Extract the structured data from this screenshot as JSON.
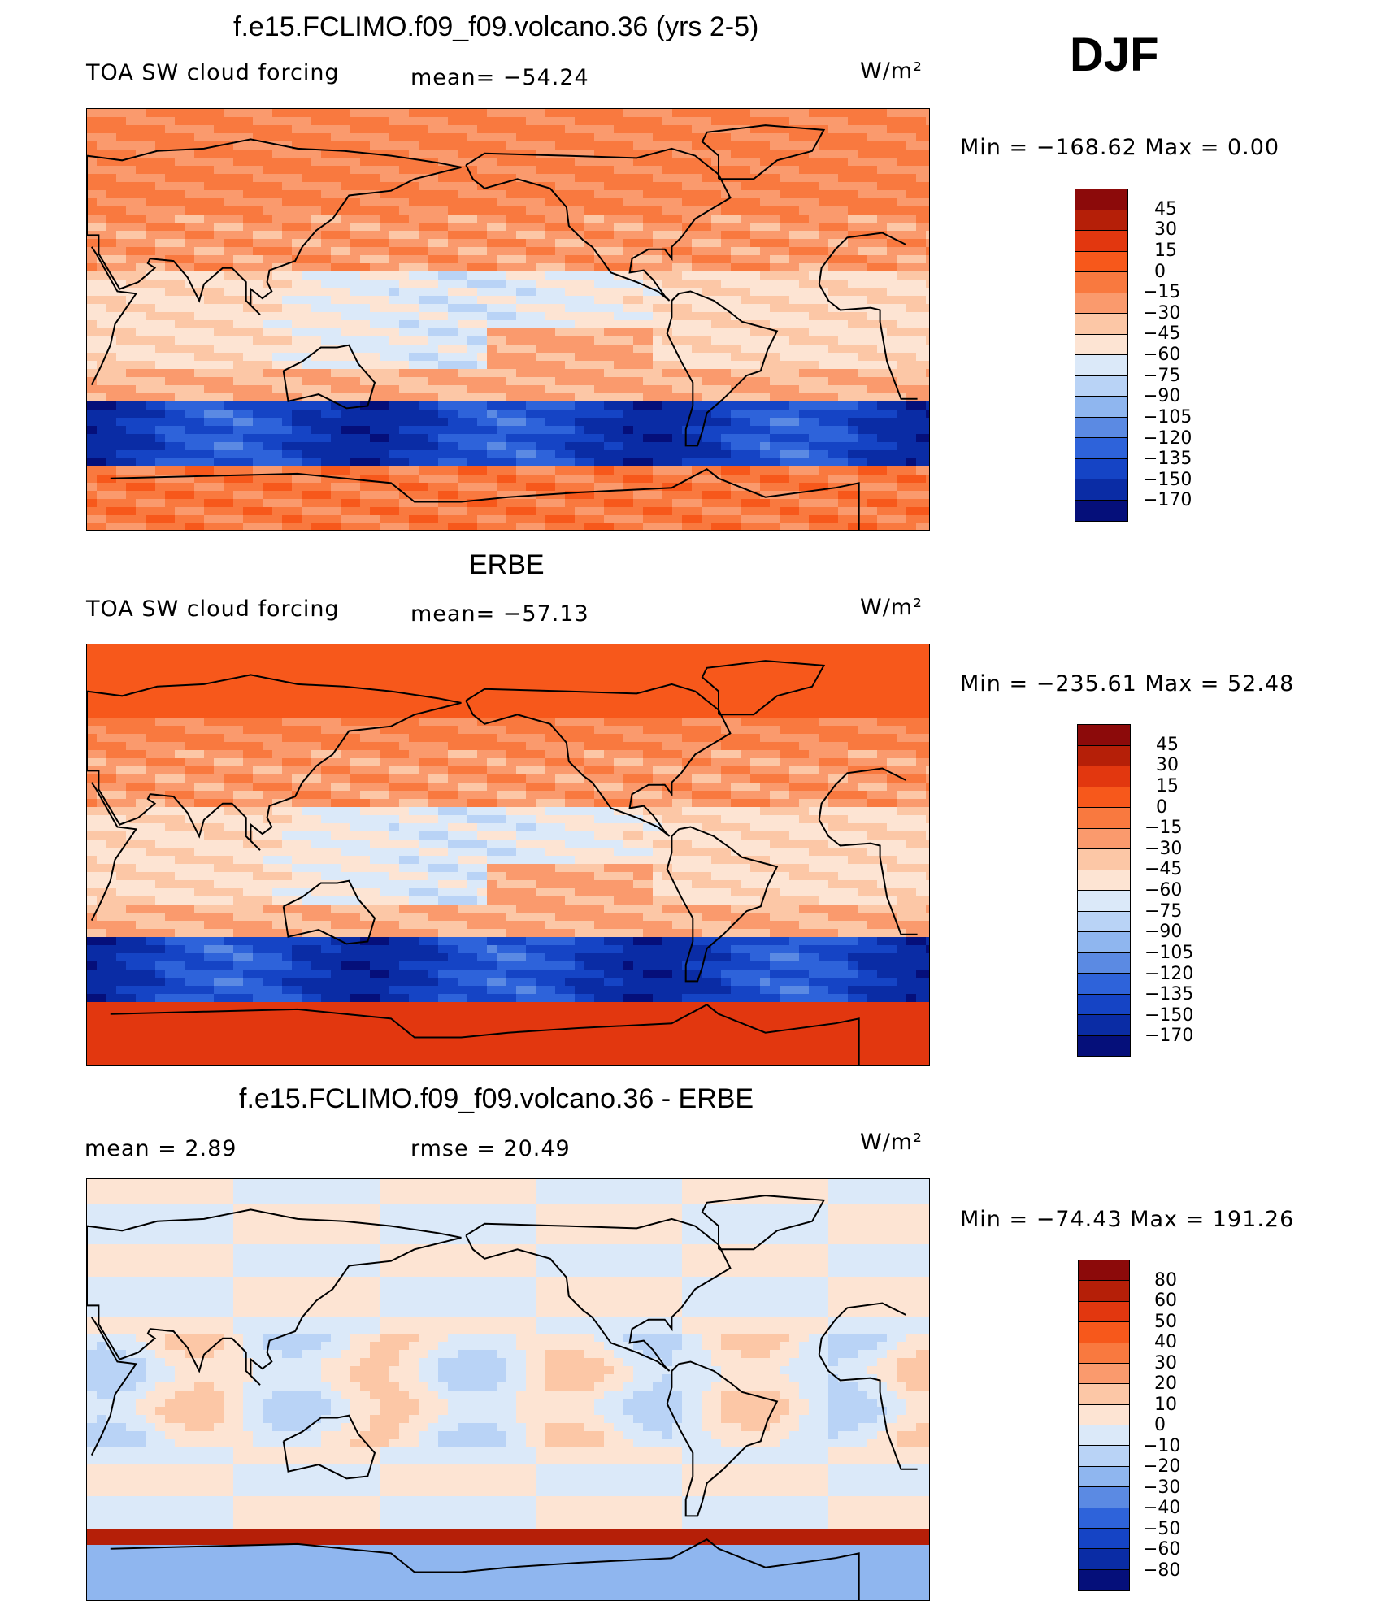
{
  "season": "DJF",
  "panels": [
    {
      "title": "f.e15.FCLIMO.f09_f09.volcano.36 (yrs 2-5)",
      "left_label": "TOA SW cloud forcing",
      "mid_label": "mean= −54.24",
      "units": "W/m²",
      "min_max": "Min  =  −168.62  Max  =     0.00",
      "colorbar_ticks": [
        "45",
        "30",
        "15",
        "0",
        "−15",
        "−30",
        "−45",
        "−60",
        "−75",
        "−90",
        "−105",
        "−120",
        "−135",
        "−150",
        "−170"
      ],
      "colorbar_colors": [
        "#8c0a0a",
        "#b51f08",
        "#e2370f",
        "#f7581b",
        "#f9793f",
        "#fa9a6d",
        "#fcc7a6",
        "#fde4d3",
        "#dbe9f9",
        "#b9d3f6",
        "#8fb6ef",
        "#5b8ae3",
        "#2e63da",
        "#1544c5",
        "#0a2ca5",
        "#050f7a"
      ],
      "map_scheme": "abs"
    },
    {
      "title": "ERBE",
      "left_label": "TOA SW cloud forcing",
      "mid_label": "mean= −57.13",
      "units": "W/m²",
      "min_max": "Min  =  −235.61  Max  =   52.48",
      "colorbar_ticks": [
        "45",
        "30",
        "15",
        "0",
        "−15",
        "−30",
        "−45",
        "−60",
        "−75",
        "−90",
        "−105",
        "−120",
        "−135",
        "−150",
        "−170"
      ],
      "colorbar_colors": [
        "#8c0a0a",
        "#b51f08",
        "#e2370f",
        "#f7581b",
        "#f9793f",
        "#fa9a6d",
        "#fcc7a6",
        "#fde4d3",
        "#dbe9f9",
        "#b9d3f6",
        "#8fb6ef",
        "#5b8ae3",
        "#2e63da",
        "#1544c5",
        "#0a2ca5",
        "#050f7a"
      ],
      "map_scheme": "obs"
    },
    {
      "title": "f.e15.FCLIMO.f09_f09.volcano.36 - ERBE",
      "left_label": "mean =     2.89",
      "mid_label": "rmse  =    20.49",
      "units": "W/m²",
      "min_max": "Min  =  −74.43  Max  =  191.26",
      "colorbar_ticks": [
        "80",
        "60",
        "50",
        "40",
        "30",
        "20",
        "10",
        "0",
        "−10",
        "−20",
        "−30",
        "−40",
        "−50",
        "−60",
        "−80"
      ],
      "colorbar_colors": [
        "#8c0a0a",
        "#b51f08",
        "#e2370f",
        "#f7581b",
        "#f9793f",
        "#fa9a6d",
        "#fcc7a6",
        "#fde4d3",
        "#dbe9f9",
        "#b9d3f6",
        "#8fb6ef",
        "#5b8ae3",
        "#2e63da",
        "#1544c5",
        "#0a2ca5",
        "#050f7a"
      ],
      "map_scheme": "diff"
    }
  ]
}
